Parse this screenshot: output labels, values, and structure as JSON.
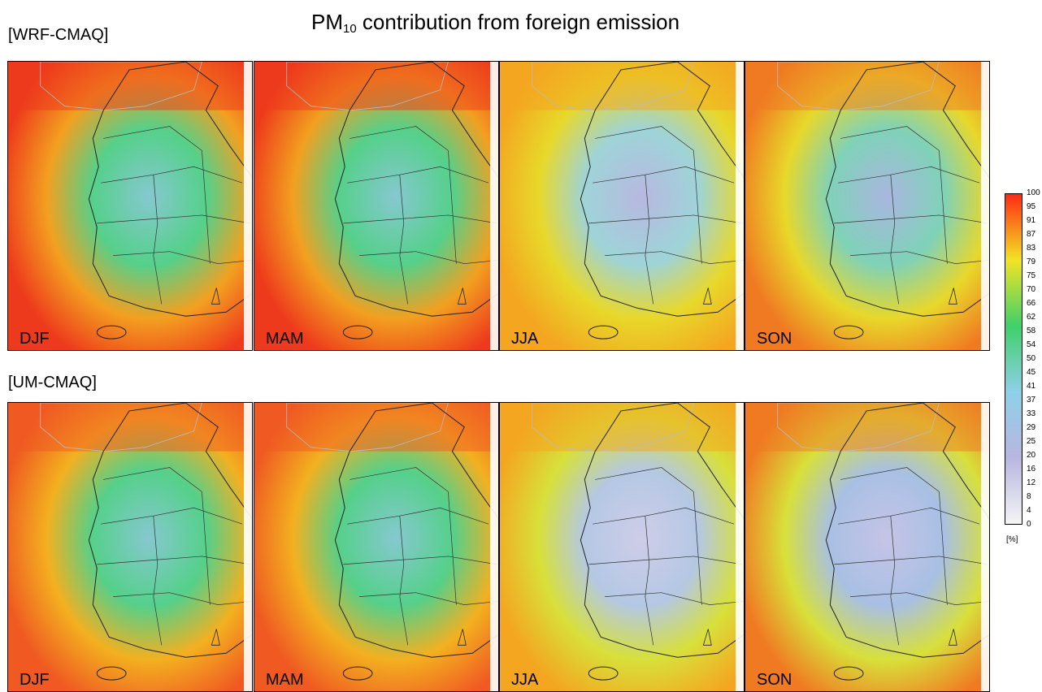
{
  "title_main": "PM",
  "title_sub": "10",
  "title_rest": " contribution from foreign emission",
  "rows": [
    {
      "label": "[WRF-CMAQ]",
      "panels": [
        {
          "season": "DJF",
          "bg": "#ee3a1c",
          "mid": "#f3a020",
          "land": "#55d08a",
          "core": "#86c8d0"
        },
        {
          "season": "MAM",
          "bg": "#ee3a1c",
          "mid": "#f2a020",
          "land": "#55d08a",
          "core": "#86c8d0"
        },
        {
          "season": "JJA",
          "bg": "#f4a620",
          "mid": "#e8d82a",
          "land": "#9ed4d8",
          "core": "#b8b8e0"
        },
        {
          "season": "SON",
          "bg": "#f07a22",
          "mid": "#e8d82a",
          "land": "#7fd2b8",
          "core": "#aab6e0"
        }
      ]
    },
    {
      "label": "[UM-CMAQ]",
      "panels": [
        {
          "season": "DJF",
          "bg": "#f05a22",
          "mid": "#f3b020",
          "land": "#55d08a",
          "core": "#86c8d0"
        },
        {
          "season": "MAM",
          "bg": "#f05a22",
          "mid": "#f3b020",
          "land": "#55d08a",
          "core": "#86c8d0"
        },
        {
          "season": "JJA",
          "bg": "#f4a620",
          "mid": "#d8e03a",
          "land": "#b4c8e4",
          "core": "#cfcde8"
        },
        {
          "season": "SON",
          "bg": "#f07a22",
          "mid": "#d8e03a",
          "land": "#a8c0e4",
          "core": "#c6c4e6"
        }
      ]
    }
  ],
  "colorbar": {
    "ticks": [
      "100",
      "95",
      "91",
      "87",
      "83",
      "79",
      "75",
      "70",
      "66",
      "62",
      "58",
      "54",
      "50",
      "45",
      "41",
      "37",
      "33",
      "29",
      "25",
      "20",
      "16",
      "12",
      "8",
      "4",
      "0"
    ],
    "unit": "[%]",
    "colors": [
      "#ff2a14",
      "#f2e424",
      "#3fd06a",
      "#8fd0e8",
      "#b8b6e0",
      "#f5f5f5"
    ]
  }
}
